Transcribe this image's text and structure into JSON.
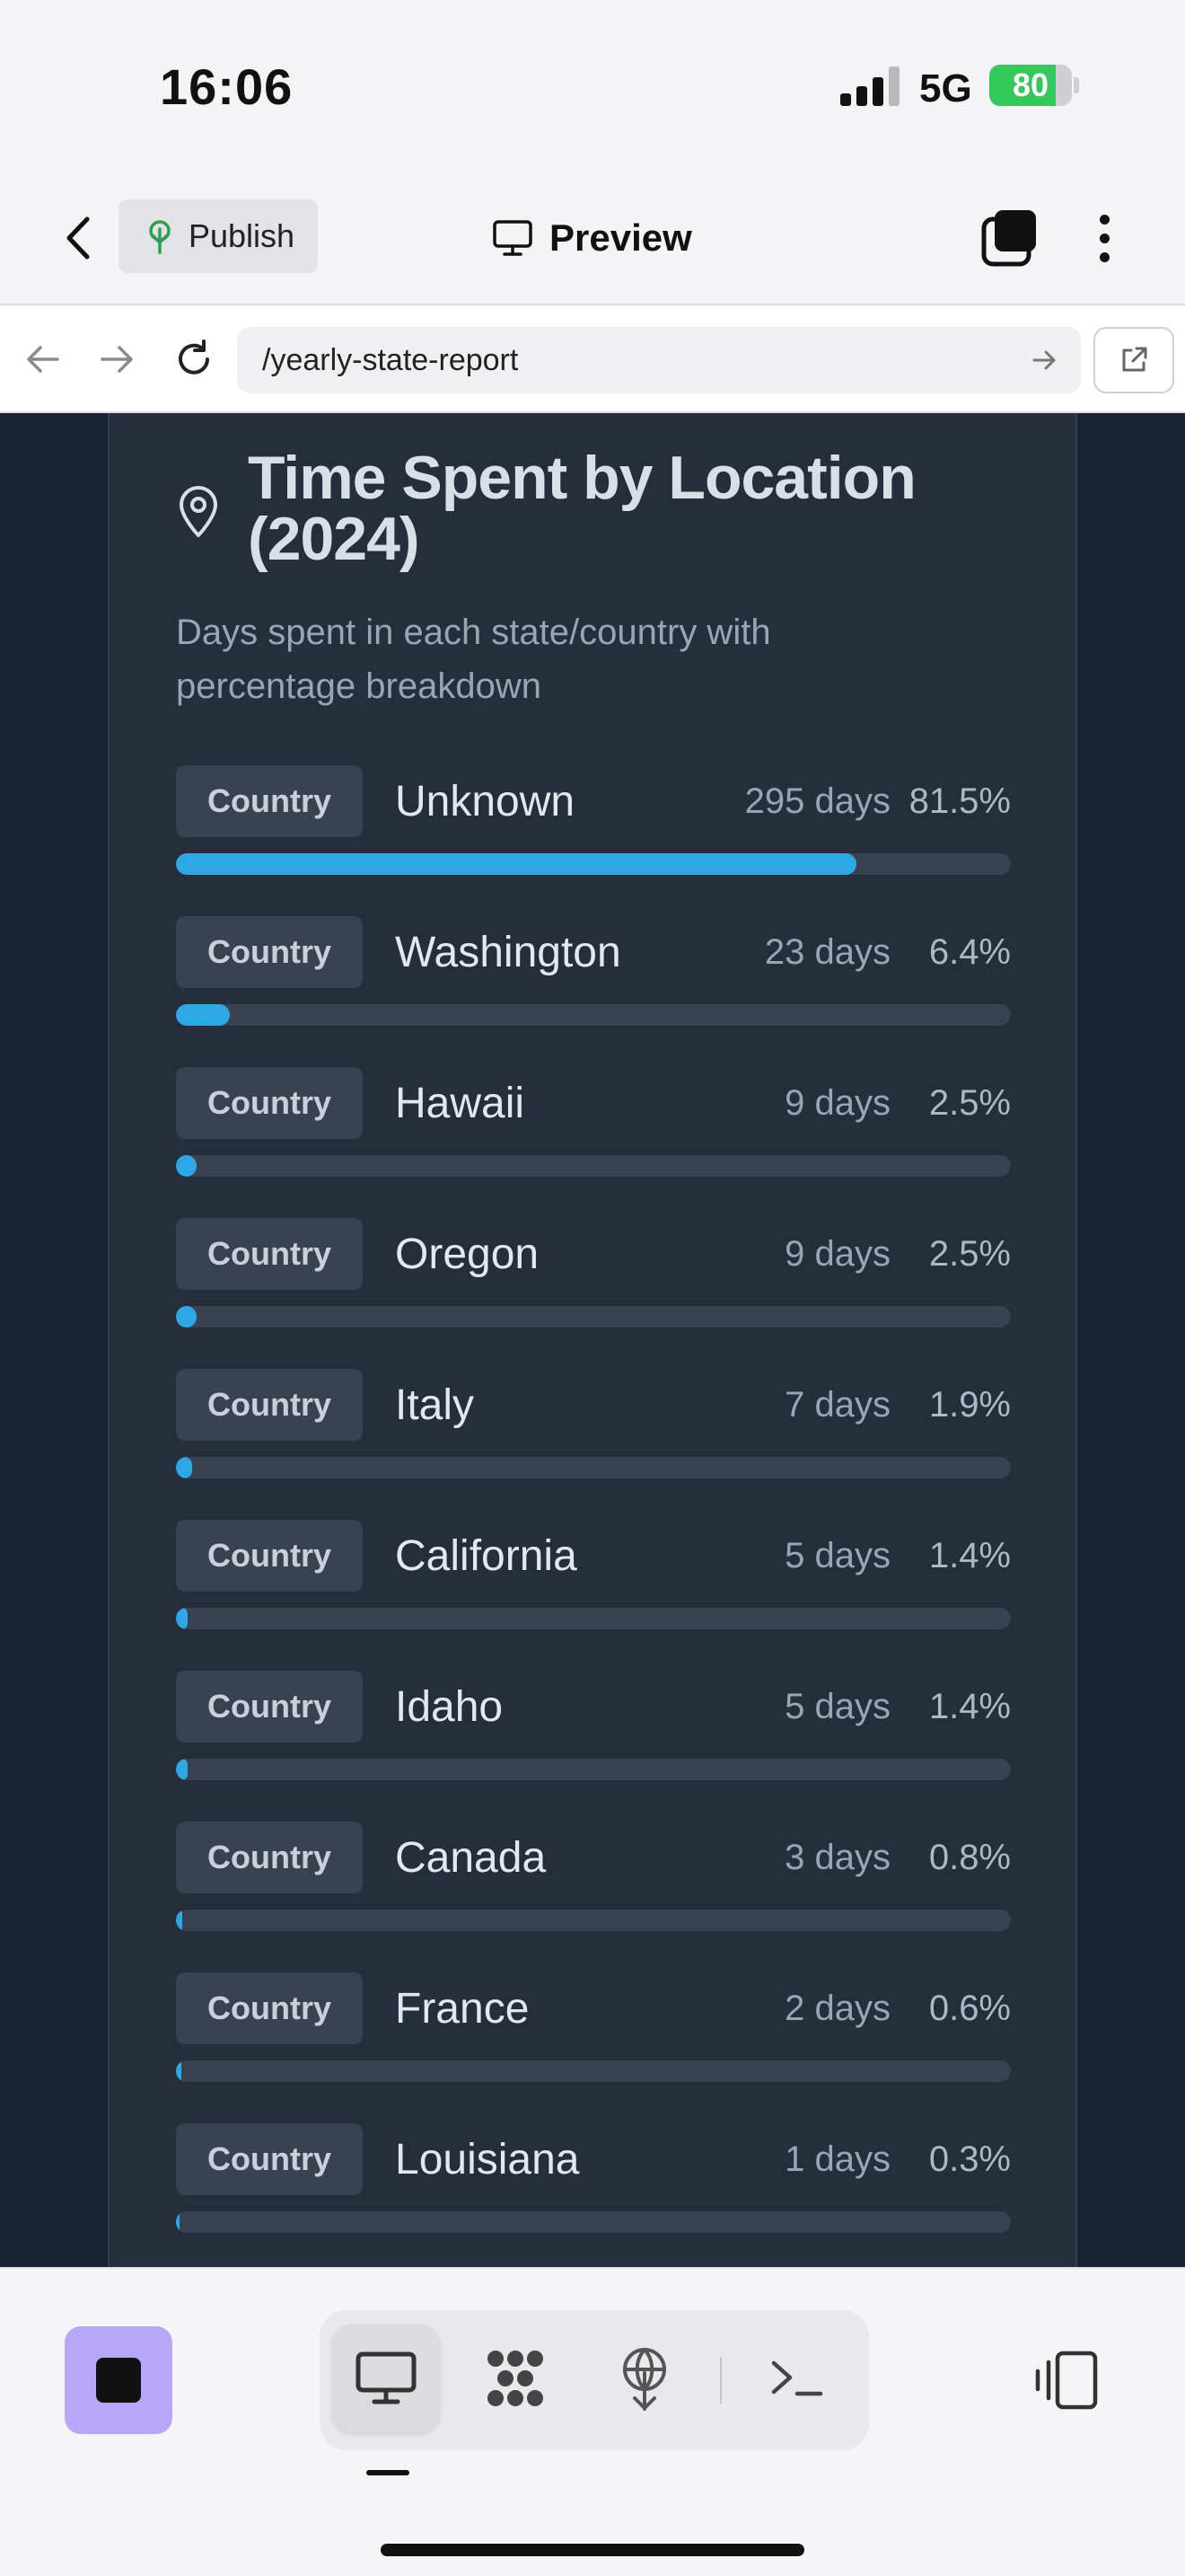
{
  "status_bar": {
    "time": "16:06",
    "network": "5G",
    "battery_percent": "80",
    "battery_level": 0.8,
    "battery_color": "#34c759"
  },
  "toolbar": {
    "back_icon": "chevron-left-icon",
    "publish_label": "Publish",
    "publish_icon": "tree-icon",
    "preview_label": "Preview",
    "preview_icon": "monitor-icon",
    "tabs_icon": "tabs-icon",
    "more_icon": "more-vertical-icon"
  },
  "browser": {
    "url": "/yearly-state-report",
    "back_icon": "arrow-left-icon",
    "forward_icon": "arrow-right-icon",
    "reload_icon": "reload-icon",
    "go_icon": "arrow-right-icon",
    "external_icon": "external-link-icon"
  },
  "card": {
    "icon": "map-pin-icon",
    "title": "Time Spent by Location (2024)",
    "subtitle": "Days spent in each state/country with percentage breakdown",
    "accent_color": "#2ea8e5",
    "locations": [
      {
        "type": "Country",
        "name": "Unknown",
        "days": "295 days",
        "percent": "81.5%",
        "fraction": 0.815
      },
      {
        "type": "Country",
        "name": "Washington",
        "days": "23 days",
        "percent": "6.4%",
        "fraction": 0.064
      },
      {
        "type": "Country",
        "name": "Hawaii",
        "days": "9 days",
        "percent": "2.5%",
        "fraction": 0.025
      },
      {
        "type": "Country",
        "name": "Oregon",
        "days": "9 days",
        "percent": "2.5%",
        "fraction": 0.025
      },
      {
        "type": "Country",
        "name": "Italy",
        "days": "7 days",
        "percent": "1.9%",
        "fraction": 0.019
      },
      {
        "type": "Country",
        "name": "California",
        "days": "5 days",
        "percent": "1.4%",
        "fraction": 0.014
      },
      {
        "type": "Country",
        "name": "Idaho",
        "days": "5 days",
        "percent": "1.4%",
        "fraction": 0.014
      },
      {
        "type": "Country",
        "name": "Canada",
        "days": "3 days",
        "percent": "0.8%",
        "fraction": 0.008
      },
      {
        "type": "Country",
        "name": "France",
        "days": "2 days",
        "percent": "0.6%",
        "fraction": 0.006
      },
      {
        "type": "Country",
        "name": "Louisiana",
        "days": "1 days",
        "percent": "0.3%",
        "fraction": 0.003
      }
    ]
  },
  "bottom_bar": {
    "app_icon": "app-stop-icon",
    "app_icon_color": "#b8a6f7",
    "tabs": [
      {
        "icon": "desktop-preview-icon",
        "active": true
      },
      {
        "icon": "nodes-icon",
        "active": false
      },
      {
        "icon": "deploy-icon",
        "active": false
      },
      {
        "icon": "terminal-icon",
        "active": false
      }
    ],
    "side_panel_icon": "side-panel-icon"
  }
}
